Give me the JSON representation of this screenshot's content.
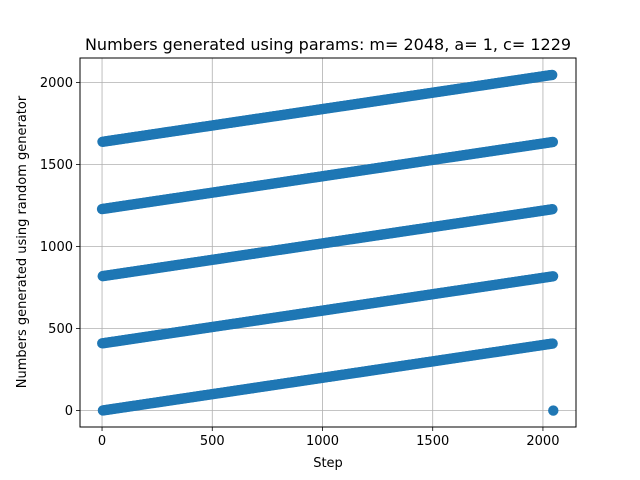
{
  "chart_data": {
    "type": "scatter",
    "title": "Numbers generated using params: m= 2048, a= 1, c= 1229",
    "xlabel": "Step",
    "ylabel": "Numbers generated using random generator",
    "xlim": [
      -100,
      2150
    ],
    "ylim": [
      -100,
      2150
    ],
    "xticks": [
      0,
      500,
      1000,
      1500,
      2000
    ],
    "yticks": [
      0,
      500,
      1000,
      1500,
      2000
    ],
    "grid": true,
    "generator": {
      "m": 2048,
      "a": 1,
      "c": 1229,
      "seed": 1229,
      "steps": 2048
    },
    "series": [
      {
        "color": "#1f77b4",
        "marker": "circle"
      }
    ]
  }
}
